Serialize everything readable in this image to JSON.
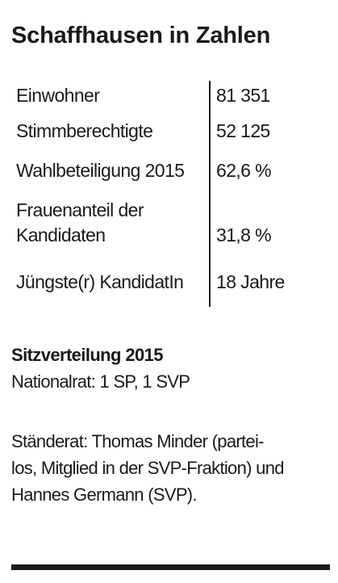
{
  "title": "Schaffhausen in Zahlen",
  "stats": [
    {
      "label": "Einwohner",
      "value": "81 351"
    },
    {
      "label": "Stimmberechtigte",
      "value": "52 125"
    },
    {
      "label": "Wahlbeteiligung 2015",
      "value": "62,6 %"
    },
    {
      "label": "Frauenanteil der Kandidaten",
      "value": "31,8 %"
    },
    {
      "label": "Jüngste(r) KandidatIn",
      "value": "18 Jahre"
    }
  ],
  "sitzverteilung": {
    "heading": "Sitzverteilung 2015",
    "nationalrat": "Nationalrat: 1 SP, 1 SVP",
    "staenderat": "Ständerat: Thomas Minder (partei-los, Mitglied in der SVP-Fraktion) und Hannes Germann (SVP)."
  }
}
